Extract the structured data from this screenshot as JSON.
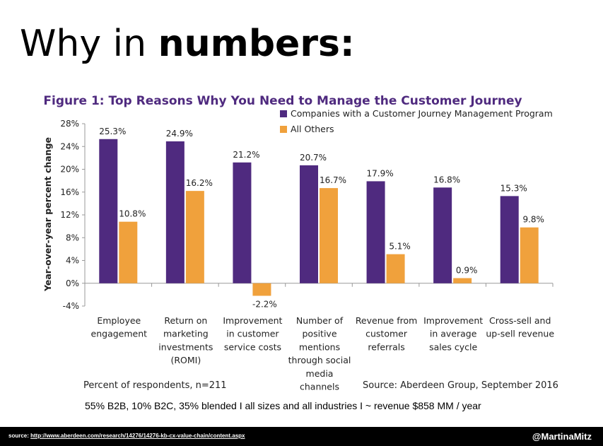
{
  "slide": {
    "title_normal": "Why in ",
    "title_bold": "numbers:",
    "sample_note": "55% B2B, 10% B2C,  35% blended   I   all sizes and all industries   I   ~ revenue $858 MM / year"
  },
  "footer": {
    "source_label": "source: ",
    "source_url": "http://www.aberdeen.com/research/14276/14276-kb-cx-value-chain/content.aspx",
    "handle": "@MartinaMitz"
  },
  "chart_data": {
    "type": "bar",
    "title": "Figure 1: Top Reasons Why You Need to Manage the Customer Journey",
    "ylabel": "Year-over-year percent change",
    "xlabel": "",
    "ylim": [
      -4,
      28
    ],
    "yticks": [
      -4,
      0,
      4,
      8,
      12,
      16,
      20,
      24,
      28
    ],
    "ytick_labels": [
      "-4%",
      "0%",
      "4%",
      "8%",
      "12%",
      "16%",
      "20%",
      "24%",
      "28%"
    ],
    "categories": [
      [
        "Employee",
        "engagement"
      ],
      [
        "Return on",
        "marketing",
        "investments",
        "(ROMI)"
      ],
      [
        "Improvement",
        "in customer",
        "service costs"
      ],
      [
        "Number of",
        "positive",
        "mentions",
        "through social",
        "media",
        "channels"
      ],
      [
        "Revenue from",
        "customer",
        "referrals"
      ],
      [
        "Improvement",
        "in average",
        "sales cycle"
      ],
      [
        "Cross-sell and",
        "up-sell revenue"
      ]
    ],
    "series": [
      {
        "name": "Companies with a Customer Journey Management Program",
        "color": "#4f2a7f",
        "values": [
          25.3,
          24.9,
          21.2,
          20.7,
          17.9,
          16.8,
          15.3
        ],
        "labels": [
          "25.3%",
          "24.9%",
          "21.2%",
          "20.7%",
          "17.9%",
          "16.8%",
          "15.3%"
        ]
      },
      {
        "name": "All Others",
        "color": "#f0a13c",
        "values": [
          10.8,
          16.2,
          -2.2,
          16.7,
          5.1,
          0.9,
          9.8
        ],
        "labels": [
          "10.8%",
          "16.2%",
          "-2.2%",
          "16.7%",
          "5.1%",
          "0.9%",
          "9.8%"
        ]
      }
    ],
    "grid": false,
    "legend_position": "top-right",
    "note_left": "Percent of respondents, n=211",
    "note_right": "Source: Aberdeen Group, September 2016"
  }
}
